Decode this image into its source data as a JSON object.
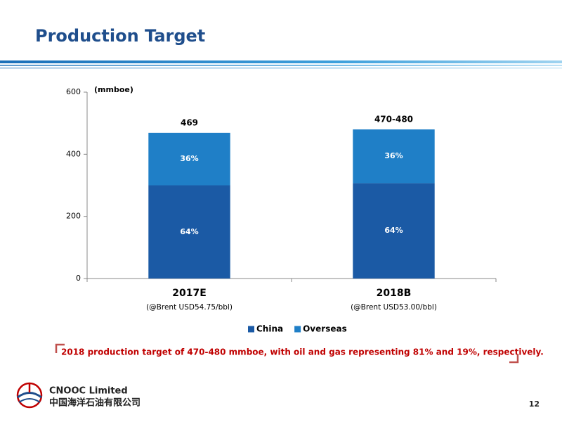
{
  "header": {
    "title": "Production Target"
  },
  "chart_data": {
    "type": "stacked_bar",
    "y_label": "(mmboe)",
    "categories": [
      "2017E",
      "2018B"
    ],
    "category_notes": [
      "(@Brent USD54.75/bbl)",
      "(@Brent USD53.00/bbl)"
    ],
    "series": [
      {
        "name": "China",
        "color": "#1b5aa5",
        "values": [
          300,
          307
        ],
        "share_labels": [
          "64%",
          "64%"
        ]
      },
      {
        "name": "Overseas",
        "color": "#1f7fc7",
        "values": [
          169,
          173
        ],
        "share_labels": [
          "36%",
          "36%"
        ]
      }
    ],
    "total_labels": [
      "469",
      "470-480"
    ],
    "ylim": [
      0,
      600
    ],
    "yticks": [
      0,
      200,
      400,
      600
    ],
    "grid": false,
    "legend": "bottom"
  },
  "note": "2018 production target of 470-480 mmboe, with oil and gas representing 81% and 19%, respectively.",
  "footer": {
    "company": "CNOOC Limited",
    "company_cn": "中国海洋石油有限公司",
    "page": "12"
  }
}
